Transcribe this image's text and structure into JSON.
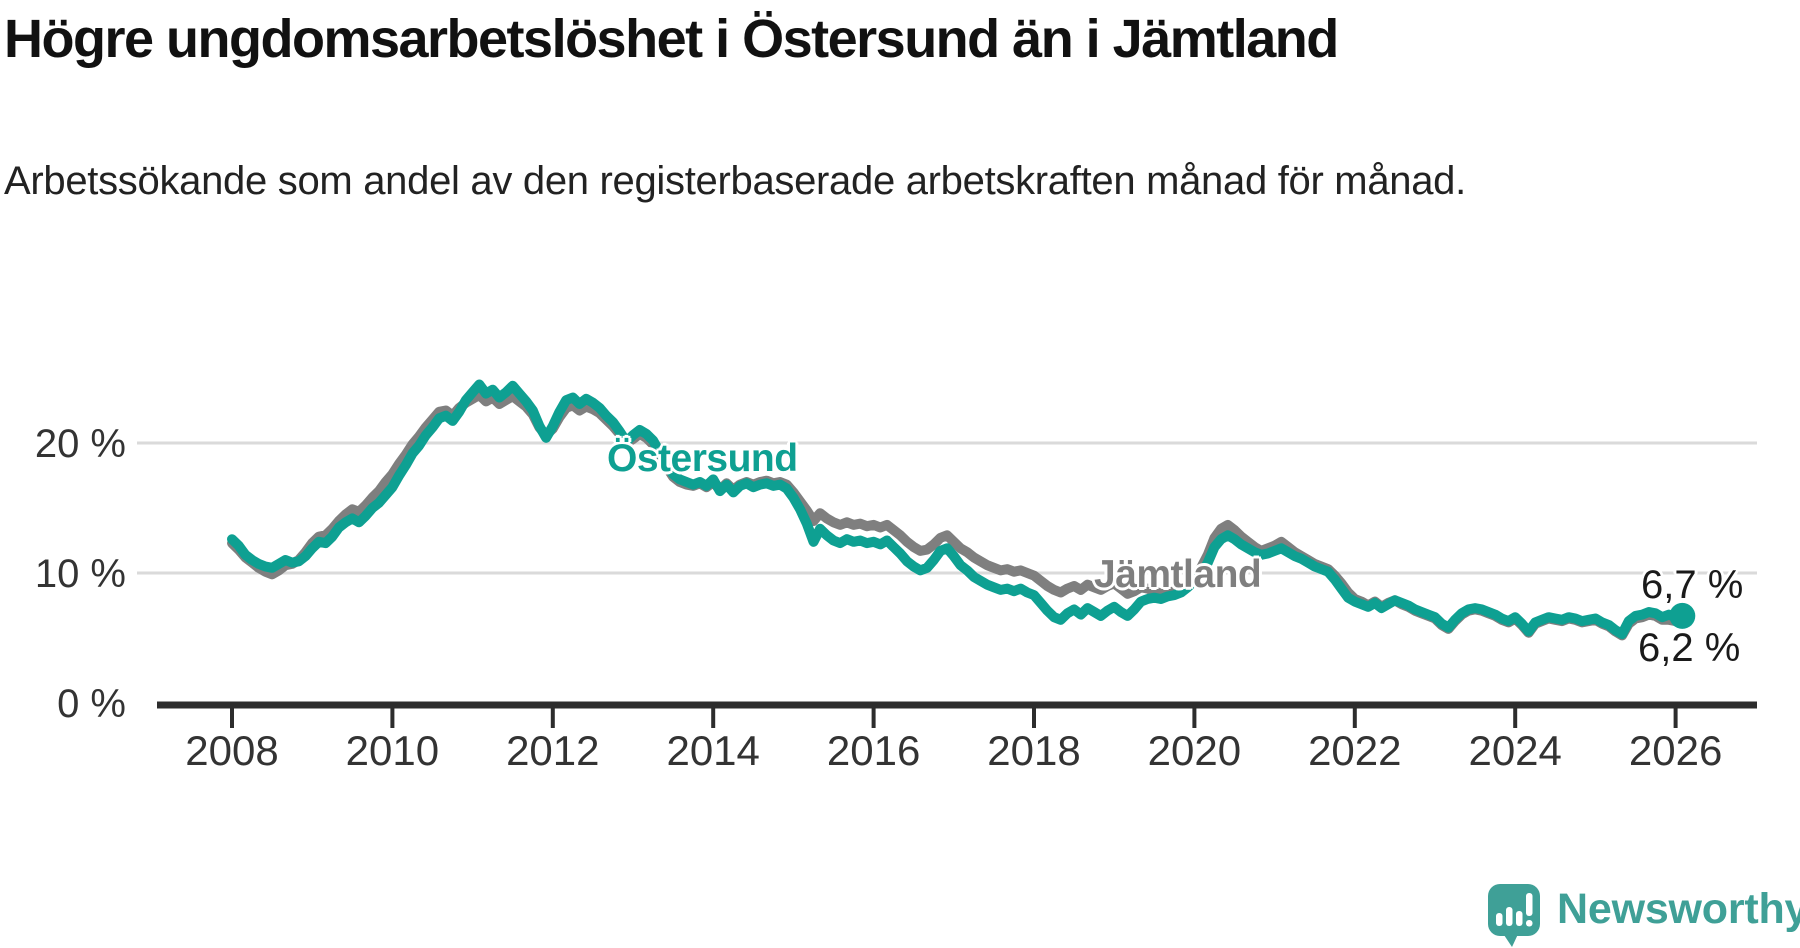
{
  "header": {
    "title": "Högre ungdomsarbetslöshet i Östersund än i Jämtland",
    "subtitle": "Arbetssökande som andel av den registerbaserade arbetskraften månad för månad."
  },
  "colors": {
    "ostersund": "#0ea092",
    "jamtland": "#7f7f7f",
    "grid": "#dadada",
    "axis": "#2d2d2d",
    "axis_text": "#333333",
    "title_text": "#111111",
    "value_label_text": "#1a1a1a",
    "brand": "#3fa097"
  },
  "chart_data": {
    "type": "line",
    "title": "Högre ungdomsarbetslöshet i Östersund än i Jämtland",
    "subtitle": "Arbetssökande som andel av den registerbaserade arbetskraften månad för månad.",
    "xlabel": "",
    "ylabel": "",
    "unit": "%",
    "grid": "horizontal",
    "legend_position": "inline-labels",
    "x_start_year": 2008,
    "x_start_month": 1,
    "x_step_months": 1,
    "x_tick_years": [
      2008,
      2010,
      2012,
      2014,
      2016,
      2018,
      2020,
      2022,
      2024,
      2026
    ],
    "y_ticks": [
      {
        "value": 20,
        "label": "20 %"
      },
      {
        "value": 10,
        "label": "10 %"
      },
      {
        "value": 0,
        "label": "0 %"
      }
    ],
    "ylim": [
      0,
      26.5
    ],
    "series": [
      {
        "name": "Jämtland",
        "color": "#7f7f7f",
        "end_label": "6,2 %",
        "end_marker": false,
        "values": [
          12.3,
          11.8,
          11.2,
          10.8,
          10.4,
          10.1,
          9.9,
          10.2,
          10.6,
          10.7,
          11.0,
          11.6,
          12.3,
          12.8,
          12.9,
          13.4,
          14.0,
          14.5,
          14.9,
          14.7,
          15.2,
          15.8,
          16.3,
          17.0,
          17.6,
          18.4,
          19.1,
          19.9,
          20.5,
          21.2,
          21.8,
          22.4,
          22.5,
          22.1,
          22.7,
          23.1,
          23.4,
          23.7,
          23.2,
          23.5,
          23.0,
          23.3,
          23.6,
          23.2,
          22.8,
          22.2,
          21.2,
          20.6,
          21.1,
          22.0,
          22.7,
          22.9,
          22.5,
          22.8,
          22.6,
          22.3,
          21.8,
          21.3,
          20.7,
          20.0,
          20.3,
          20.7,
          20.4,
          19.9,
          19.1,
          18.2,
          17.4,
          17.0,
          16.8,
          16.7,
          16.9,
          16.6,
          17.0,
          16.4,
          16.9,
          16.4,
          16.8,
          17.0,
          16.8,
          17.0,
          17.1,
          16.9,
          17.0,
          16.8,
          16.2,
          15.5,
          14.8,
          14.0,
          14.6,
          14.2,
          13.9,
          13.7,
          13.9,
          13.7,
          13.8,
          13.6,
          13.7,
          13.5,
          13.7,
          13.3,
          12.9,
          12.4,
          12.0,
          11.7,
          11.8,
          12.2,
          12.7,
          12.9,
          12.4,
          11.9,
          11.6,
          11.2,
          10.9,
          10.6,
          10.4,
          10.2,
          10.3,
          10.1,
          10.2,
          10.0,
          9.8,
          9.4,
          9.0,
          8.7,
          8.5,
          8.8,
          9.0,
          8.7,
          9.1,
          8.9,
          8.7,
          9.0,
          9.2,
          8.8,
          8.4,
          8.6,
          8.9,
          8.8,
          8.6,
          8.4,
          8.5,
          8.6,
          8.8,
          9.2,
          9.8,
          10.4,
          11.4,
          12.7,
          13.4,
          13.7,
          13.3,
          12.8,
          12.4,
          12.0,
          11.7,
          11.9,
          12.1,
          12.4,
          12.0,
          11.6,
          11.3,
          11.0,
          10.7,
          10.5,
          10.3,
          9.8,
          9.2,
          8.5,
          8.0,
          7.8,
          7.5,
          7.8,
          7.4,
          7.7,
          7.9,
          7.6,
          7.4,
          7.1,
          6.9,
          6.7,
          6.5,
          6.0,
          5.7,
          6.3,
          6.8,
          7.1,
          7.2,
          7.1,
          6.9,
          6.7,
          6.4,
          6.2,
          6.5,
          6.0,
          5.4,
          6.1,
          6.3,
          6.5,
          6.4,
          6.3,
          6.5,
          6.4,
          6.2,
          6.3,
          6.4,
          6.1,
          5.9,
          5.5,
          5.2,
          6.1,
          6.5,
          6.6,
          6.8,
          6.7,
          6.4,
          6.4,
          6.3,
          6.2
        ]
      },
      {
        "name": "Östersund",
        "color": "#0ea092",
        "end_label": "6,7 %",
        "end_marker": true,
        "values": [
          12.6,
          12.1,
          11.4,
          11.0,
          10.7,
          10.5,
          10.4,
          10.7,
          11.0,
          10.8,
          10.9,
          11.3,
          11.9,
          12.4,
          12.3,
          12.8,
          13.5,
          13.9,
          14.2,
          13.9,
          14.4,
          15.0,
          15.4,
          16.0,
          16.6,
          17.5,
          18.3,
          19.2,
          19.8,
          20.6,
          21.2,
          21.9,
          22.1,
          21.7,
          22.4,
          23.3,
          23.9,
          24.5,
          23.8,
          24.1,
          23.5,
          23.9,
          24.4,
          23.8,
          23.2,
          22.5,
          21.3,
          20.4,
          21.3,
          22.4,
          23.3,
          23.5,
          23.0,
          23.4,
          23.1,
          22.7,
          22.1,
          21.6,
          20.9,
          20.1,
          20.6,
          21.0,
          20.7,
          20.2,
          19.3,
          18.4,
          17.6,
          17.2,
          17.0,
          16.8,
          17.0,
          16.7,
          17.2,
          16.3,
          16.8,
          16.2,
          16.7,
          16.9,
          16.6,
          16.8,
          16.9,
          16.7,
          16.8,
          16.5,
          15.8,
          14.9,
          13.8,
          12.4,
          13.4,
          12.9,
          12.5,
          12.3,
          12.6,
          12.4,
          12.5,
          12.3,
          12.4,
          12.2,
          12.5,
          12.0,
          11.5,
          10.9,
          10.5,
          10.2,
          10.4,
          11.0,
          11.7,
          11.9,
          11.3,
          10.6,
          10.2,
          9.7,
          9.4,
          9.1,
          8.9,
          8.7,
          8.8,
          8.6,
          8.8,
          8.5,
          8.3,
          7.7,
          7.1,
          6.6,
          6.4,
          6.9,
          7.2,
          6.8,
          7.3,
          7.0,
          6.7,
          7.1,
          7.4,
          7.0,
          6.7,
          7.2,
          7.8,
          8.0,
          8.1,
          8.0,
          8.2,
          8.3,
          8.5,
          8.9,
          9.4,
          9.9,
          10.8,
          12.0,
          12.6,
          12.9,
          12.6,
          12.2,
          11.9,
          11.6,
          11.4,
          11.5,
          11.7,
          11.9,
          11.6,
          11.3,
          11.1,
          10.8,
          10.5,
          10.3,
          10.1,
          9.5,
          8.8,
          8.1,
          7.8,
          7.6,
          7.4,
          7.7,
          7.3,
          7.6,
          7.9,
          7.7,
          7.5,
          7.2,
          7.0,
          6.8,
          6.6,
          6.1,
          5.8,
          6.4,
          6.9,
          7.2,
          7.3,
          7.2,
          7.0,
          6.8,
          6.5,
          6.3,
          6.6,
          6.1,
          5.5,
          6.2,
          6.4,
          6.6,
          6.5,
          6.4,
          6.6,
          6.5,
          6.3,
          6.4,
          6.5,
          6.2,
          6.0,
          5.6,
          5.3,
          6.3,
          6.7,
          6.8,
          7.0,
          6.9,
          6.6,
          6.8,
          6.6,
          6.7
        ]
      }
    ]
  },
  "branding": {
    "name": "Newsworthy"
  }
}
